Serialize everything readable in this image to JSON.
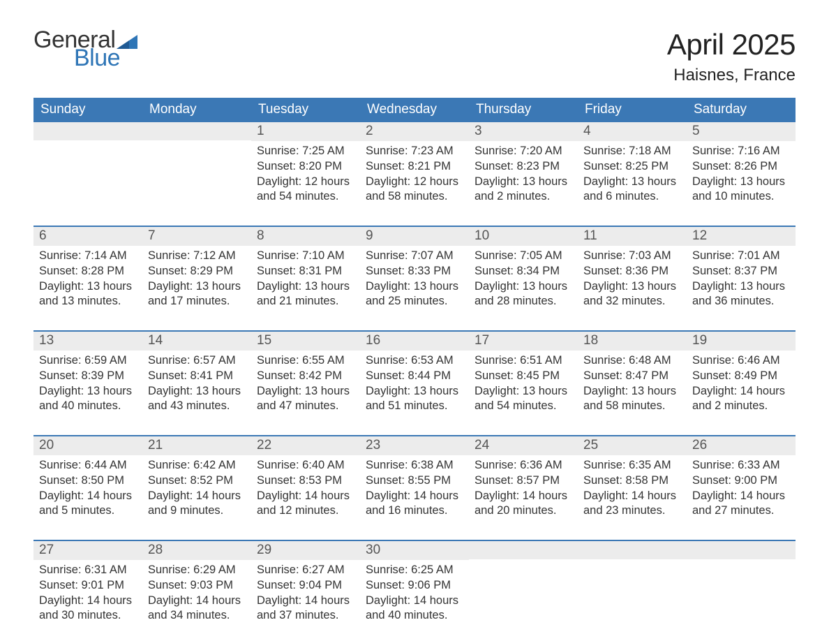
{
  "logo": {
    "text1": "General",
    "text2": "Blue"
  },
  "title": "April 2025",
  "location": "Haisnes, France",
  "colors": {
    "header_bg": "#3b78b5",
    "header_text": "#ffffff",
    "daynum_bg": "#ececec",
    "week_border": "#3b78b5",
    "accent": "#2e75b6",
    "text": "#333333"
  },
  "day_headers": [
    "Sunday",
    "Monday",
    "Tuesday",
    "Wednesday",
    "Thursday",
    "Friday",
    "Saturday"
  ],
  "weeks": [
    [
      {
        "num": "",
        "lines": []
      },
      {
        "num": "",
        "lines": []
      },
      {
        "num": "1",
        "lines": [
          "Sunrise: 7:25 AM",
          "Sunset: 8:20 PM",
          "Daylight: 12 hours",
          "and 54 minutes."
        ]
      },
      {
        "num": "2",
        "lines": [
          "Sunrise: 7:23 AM",
          "Sunset: 8:21 PM",
          "Daylight: 12 hours",
          "and 58 minutes."
        ]
      },
      {
        "num": "3",
        "lines": [
          "Sunrise: 7:20 AM",
          "Sunset: 8:23 PM",
          "Daylight: 13 hours",
          "and 2 minutes."
        ]
      },
      {
        "num": "4",
        "lines": [
          "Sunrise: 7:18 AM",
          "Sunset: 8:25 PM",
          "Daylight: 13 hours",
          "and 6 minutes."
        ]
      },
      {
        "num": "5",
        "lines": [
          "Sunrise: 7:16 AM",
          "Sunset: 8:26 PM",
          "Daylight: 13 hours",
          "and 10 minutes."
        ]
      }
    ],
    [
      {
        "num": "6",
        "lines": [
          "Sunrise: 7:14 AM",
          "Sunset: 8:28 PM",
          "Daylight: 13 hours",
          "and 13 minutes."
        ]
      },
      {
        "num": "7",
        "lines": [
          "Sunrise: 7:12 AM",
          "Sunset: 8:29 PM",
          "Daylight: 13 hours",
          "and 17 minutes."
        ]
      },
      {
        "num": "8",
        "lines": [
          "Sunrise: 7:10 AM",
          "Sunset: 8:31 PM",
          "Daylight: 13 hours",
          "and 21 minutes."
        ]
      },
      {
        "num": "9",
        "lines": [
          "Sunrise: 7:07 AM",
          "Sunset: 8:33 PM",
          "Daylight: 13 hours",
          "and 25 minutes."
        ]
      },
      {
        "num": "10",
        "lines": [
          "Sunrise: 7:05 AM",
          "Sunset: 8:34 PM",
          "Daylight: 13 hours",
          "and 28 minutes."
        ]
      },
      {
        "num": "11",
        "lines": [
          "Sunrise: 7:03 AM",
          "Sunset: 8:36 PM",
          "Daylight: 13 hours",
          "and 32 minutes."
        ]
      },
      {
        "num": "12",
        "lines": [
          "Sunrise: 7:01 AM",
          "Sunset: 8:37 PM",
          "Daylight: 13 hours",
          "and 36 minutes."
        ]
      }
    ],
    [
      {
        "num": "13",
        "lines": [
          "Sunrise: 6:59 AM",
          "Sunset: 8:39 PM",
          "Daylight: 13 hours",
          "and 40 minutes."
        ]
      },
      {
        "num": "14",
        "lines": [
          "Sunrise: 6:57 AM",
          "Sunset: 8:41 PM",
          "Daylight: 13 hours",
          "and 43 minutes."
        ]
      },
      {
        "num": "15",
        "lines": [
          "Sunrise: 6:55 AM",
          "Sunset: 8:42 PM",
          "Daylight: 13 hours",
          "and 47 minutes."
        ]
      },
      {
        "num": "16",
        "lines": [
          "Sunrise: 6:53 AM",
          "Sunset: 8:44 PM",
          "Daylight: 13 hours",
          "and 51 minutes."
        ]
      },
      {
        "num": "17",
        "lines": [
          "Sunrise: 6:51 AM",
          "Sunset: 8:45 PM",
          "Daylight: 13 hours",
          "and 54 minutes."
        ]
      },
      {
        "num": "18",
        "lines": [
          "Sunrise: 6:48 AM",
          "Sunset: 8:47 PM",
          "Daylight: 13 hours",
          "and 58 minutes."
        ]
      },
      {
        "num": "19",
        "lines": [
          "Sunrise: 6:46 AM",
          "Sunset: 8:49 PM",
          "Daylight: 14 hours",
          "and 2 minutes."
        ]
      }
    ],
    [
      {
        "num": "20",
        "lines": [
          "Sunrise: 6:44 AM",
          "Sunset: 8:50 PM",
          "Daylight: 14 hours",
          "and 5 minutes."
        ]
      },
      {
        "num": "21",
        "lines": [
          "Sunrise: 6:42 AM",
          "Sunset: 8:52 PM",
          "Daylight: 14 hours",
          "and 9 minutes."
        ]
      },
      {
        "num": "22",
        "lines": [
          "Sunrise: 6:40 AM",
          "Sunset: 8:53 PM",
          "Daylight: 14 hours",
          "and 12 minutes."
        ]
      },
      {
        "num": "23",
        "lines": [
          "Sunrise: 6:38 AM",
          "Sunset: 8:55 PM",
          "Daylight: 14 hours",
          "and 16 minutes."
        ]
      },
      {
        "num": "24",
        "lines": [
          "Sunrise: 6:36 AM",
          "Sunset: 8:57 PM",
          "Daylight: 14 hours",
          "and 20 minutes."
        ]
      },
      {
        "num": "25",
        "lines": [
          "Sunrise: 6:35 AM",
          "Sunset: 8:58 PM",
          "Daylight: 14 hours",
          "and 23 minutes."
        ]
      },
      {
        "num": "26",
        "lines": [
          "Sunrise: 6:33 AM",
          "Sunset: 9:00 PM",
          "Daylight: 14 hours",
          "and 27 minutes."
        ]
      }
    ],
    [
      {
        "num": "27",
        "lines": [
          "Sunrise: 6:31 AM",
          "Sunset: 9:01 PM",
          "Daylight: 14 hours",
          "and 30 minutes."
        ]
      },
      {
        "num": "28",
        "lines": [
          "Sunrise: 6:29 AM",
          "Sunset: 9:03 PM",
          "Daylight: 14 hours",
          "and 34 minutes."
        ]
      },
      {
        "num": "29",
        "lines": [
          "Sunrise: 6:27 AM",
          "Sunset: 9:04 PM",
          "Daylight: 14 hours",
          "and 37 minutes."
        ]
      },
      {
        "num": "30",
        "lines": [
          "Sunrise: 6:25 AM",
          "Sunset: 9:06 PM",
          "Daylight: 14 hours",
          "and 40 minutes."
        ]
      },
      {
        "num": "",
        "lines": []
      },
      {
        "num": "",
        "lines": []
      },
      {
        "num": "",
        "lines": []
      }
    ]
  ]
}
